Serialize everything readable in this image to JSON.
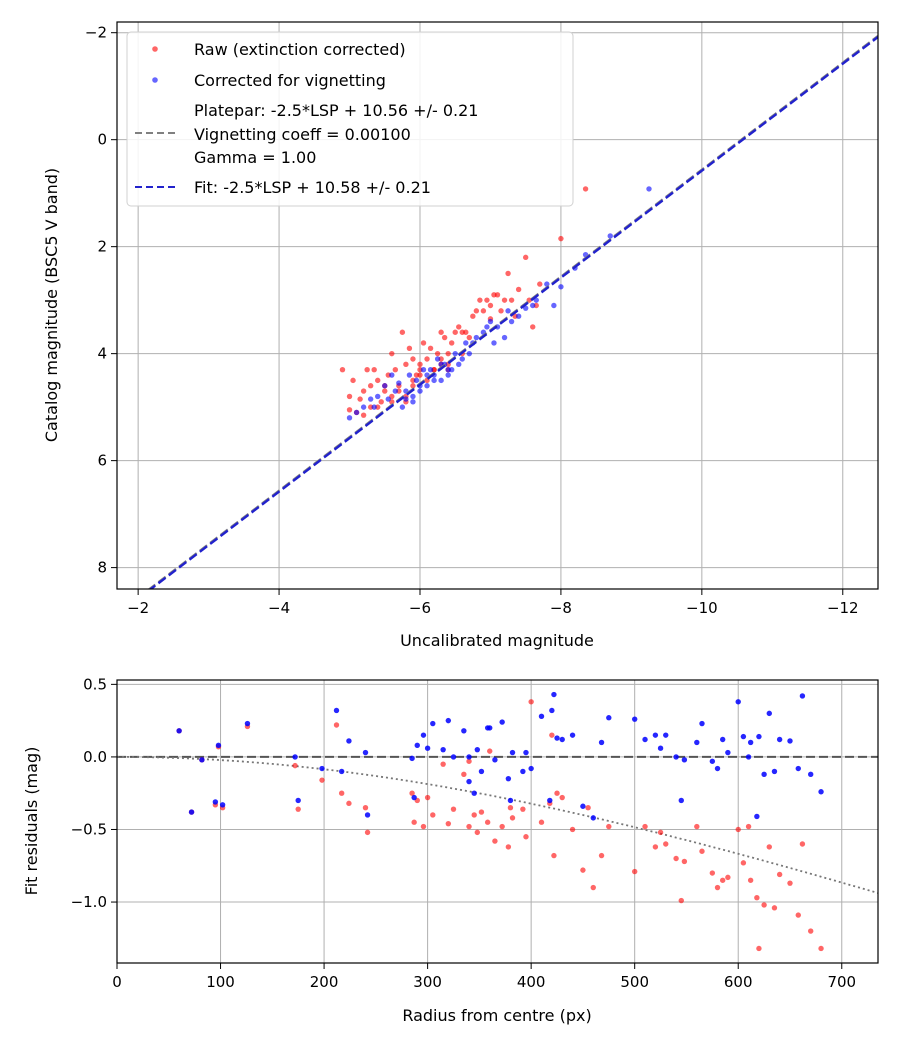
{
  "chart_data": [
    {
      "type": "scatter",
      "xlabel": "Uncalibrated magnitude",
      "ylabel": "Catalog magnitude (BSC5 V band)",
      "xlim": [
        -1.7,
        -12.5
      ],
      "ylim": [
        8.4,
        -2.2
      ],
      "xticks": [
        -2,
        -4,
        -6,
        -8,
        -10,
        -12
      ],
      "xtick_labels": [
        "−2",
        "−4",
        "−6",
        "−8",
        "−10",
        "−12"
      ],
      "yticks": [
        -2,
        0,
        2,
        4,
        6,
        8
      ],
      "ytick_labels": [
        "−2",
        "0",
        "2",
        "4",
        "6",
        "8"
      ],
      "grid": true,
      "legend_position": "top-left",
      "legend": {
        "raw": "Raw (extinction corrected)",
        "corrected": "Corrected for vignetting",
        "platepar_line1": "Platepar: -2.5*LSP + 10.56 +/- 0.21",
        "platepar_line2": "Vignetting coeff = 0.00100",
        "platepar_line3": "Gamma = 1.00",
        "fit": "Fit: -2.5*LSP + 10.58 +/- 0.21"
      },
      "colors": {
        "raw": "#ff0000",
        "corrected": "#0000ff",
        "platepar": "#808080",
        "fit": "#2222cc"
      },
      "platepar_line": {
        "slope": 1.0,
        "intercept": 10.56
      },
      "fit_line": {
        "slope": 1.0,
        "intercept": 10.58
      },
      "series": [
        {
          "name": "Raw (extinction corrected)",
          "x": [
            -4.9,
            -5.0,
            -5.0,
            -5.05,
            -5.1,
            -5.15,
            -5.2,
            -5.25,
            -5.3,
            -5.3,
            -5.35,
            -5.4,
            -5.45,
            -5.5,
            -5.55,
            -5.6,
            -5.6,
            -5.65,
            -5.7,
            -5.75,
            -5.8,
            -5.8,
            -5.85,
            -5.9,
            -5.9,
            -5.95,
            -6.0,
            -6.05,
            -6.1,
            -6.1,
            -6.15,
            -6.2,
            -6.25,
            -6.3,
            -6.3,
            -6.35,
            -6.4,
            -6.4,
            -6.45,
            -6.5,
            -6.55,
            -6.6,
            -6.65,
            -6.7,
            -6.75,
            -6.8,
            -6.85,
            -6.9,
            -6.95,
            -7.0,
            -7.0,
            -7.05,
            -7.1,
            -7.15,
            -7.2,
            -7.25,
            -7.3,
            -7.35,
            -7.4,
            -7.5,
            -7.55,
            -7.6,
            -7.65,
            -7.7,
            -8.0,
            -8.35,
            -5.5,
            -5.7,
            -5.9,
            -6.0,
            -6.2,
            -6.4,
            -6.6,
            -5.2,
            -5.4,
            -5.6,
            -5.8,
            -6.0,
            -6.3
          ],
          "y": [
            4.3,
            4.8,
            5.05,
            4.5,
            5.1,
            4.85,
            4.7,
            4.3,
            4.6,
            5.0,
            4.3,
            4.5,
            4.9,
            4.7,
            4.4,
            4.0,
            4.8,
            4.3,
            4.6,
            3.6,
            4.2,
            4.9,
            3.9,
            4.1,
            4.5,
            4.4,
            4.2,
            3.8,
            4.1,
            4.5,
            3.9,
            4.3,
            4.0,
            4.2,
            3.6,
            3.7,
            4.0,
            4.3,
            3.8,
            3.6,
            3.5,
            3.6,
            3.6,
            3.7,
            3.3,
            3.2,
            3.0,
            3.2,
            3.0,
            3.35,
            3.1,
            2.9,
            2.9,
            3.2,
            3.0,
            2.5,
            3.0,
            3.3,
            2.8,
            2.2,
            3.0,
            3.5,
            3.1,
            2.7,
            1.85,
            0.92,
            4.6,
            4.7,
            4.6,
            4.4,
            4.3,
            4.2,
            4.0,
            5.15,
            5.0,
            4.9,
            4.8,
            4.3,
            4.1
          ]
        },
        {
          "name": "Corrected for vignetting",
          "x": [
            -5.0,
            -5.1,
            -5.2,
            -5.3,
            -5.35,
            -5.4,
            -5.5,
            -5.55,
            -5.6,
            -5.65,
            -5.7,
            -5.75,
            -5.8,
            -5.85,
            -5.9,
            -5.95,
            -6.0,
            -6.05,
            -6.1,
            -6.15,
            -6.2,
            -6.25,
            -6.3,
            -6.35,
            -6.4,
            -6.45,
            -6.5,
            -6.55,
            -6.6,
            -6.65,
            -6.7,
            -6.75,
            -6.8,
            -6.9,
            -6.95,
            -7.0,
            -7.05,
            -7.1,
            -7.2,
            -7.25,
            -7.3,
            -7.4,
            -7.5,
            -7.6,
            -7.65,
            -7.8,
            -7.9,
            -8.0,
            -8.2,
            -8.35,
            -8.7,
            -9.25,
            -5.8,
            -6.0,
            -6.2,
            -6.4,
            -5.9,
            -6.1,
            -6.3
          ],
          "y": [
            5.2,
            5.1,
            5.0,
            4.85,
            5.0,
            4.8,
            4.6,
            4.85,
            4.4,
            4.7,
            4.55,
            5.0,
            4.7,
            4.4,
            4.8,
            4.5,
            4.6,
            4.3,
            4.6,
            4.3,
            4.4,
            4.1,
            4.5,
            4.2,
            4.4,
            4.3,
            4.0,
            4.2,
            4.1,
            3.8,
            4.0,
            3.8,
            3.7,
            3.6,
            3.5,
            3.4,
            3.8,
            3.5,
            3.7,
            3.2,
            3.4,
            3.3,
            3.15,
            3.1,
            3.0,
            2.7,
            3.1,
            2.75,
            2.4,
            2.15,
            1.8,
            0.92,
            4.85,
            4.7,
            4.5,
            4.3,
            4.9,
            4.4,
            4.2
          ]
        }
      ]
    },
    {
      "type": "scatter",
      "xlabel": "Radius from centre (px)",
      "ylabel": "Fit residuals (mag)",
      "xlim": [
        0,
        735
      ],
      "ylim": [
        -1.42,
        0.53
      ],
      "xticks": [
        0,
        100,
        200,
        300,
        400,
        500,
        600,
        700
      ],
      "xtick_labels": [
        "0",
        "100",
        "200",
        "300",
        "400",
        "500",
        "600",
        "700"
      ],
      "yticks": [
        0.5,
        0.0,
        -0.5,
        -1.0
      ],
      "ytick_labels": [
        "0.5",
        "0.0",
        "−0.5",
        "−1.0"
      ],
      "grid": true,
      "zero_line": 0.0,
      "vignetting_curve": {
        "type": "dotted",
        "coeff": 0.001,
        "note": "-2.5*log10(cos^4(atan(coeff*r)))"
      },
      "series": [
        {
          "name": "Raw",
          "x": [
            60,
            72,
            82,
            95,
            98,
            102,
            126,
            172,
            175,
            198,
            212,
            217,
            224,
            240,
            242,
            285,
            287,
            290,
            296,
            300,
            305,
            315,
            320,
            325,
            335,
            340,
            345,
            348,
            352,
            358,
            365,
            372,
            378,
            382,
            392,
            395,
            410,
            418,
            422,
            425,
            430,
            440,
            450,
            460,
            468,
            475,
            500,
            510,
            520,
            525,
            530,
            540,
            545,
            548,
            560,
            565,
            575,
            580,
            585,
            590,
            600,
            605,
            610,
            612,
            618,
            620,
            625,
            630,
            635,
            640,
            650,
            658,
            662,
            670,
            680,
            340,
            360,
            380,
            400,
            420,
            455
          ],
          "y": [
            0.18,
            -0.38,
            -0.02,
            -0.33,
            0.07,
            -0.35,
            0.21,
            -0.06,
            -0.36,
            -0.16,
            0.22,
            -0.25,
            -0.32,
            -0.35,
            -0.52,
            -0.25,
            -0.45,
            -0.3,
            -0.48,
            -0.28,
            -0.4,
            -0.05,
            -0.46,
            -0.36,
            -0.12,
            -0.48,
            -0.4,
            -0.52,
            -0.38,
            -0.45,
            -0.58,
            -0.48,
            -0.62,
            -0.42,
            -0.36,
            -0.55,
            -0.45,
            -0.32,
            -0.68,
            -0.25,
            -0.28,
            -0.5,
            -0.78,
            -0.9,
            -0.68,
            -0.48,
            -0.79,
            -0.48,
            -0.62,
            -0.52,
            -0.6,
            -0.7,
            -0.99,
            -0.72,
            -0.48,
            -0.65,
            -0.8,
            -0.9,
            -0.85,
            -0.83,
            -0.5,
            -0.73,
            -0.48,
            -0.85,
            -0.97,
            -1.32,
            -1.02,
            -0.62,
            -1.04,
            -0.81,
            -0.87,
            -1.09,
            -0.6,
            -1.2,
            -1.32,
            -0.03,
            0.04,
            -0.35,
            0.38,
            0.15,
            -0.35
          ]
        },
        {
          "name": "Corrected",
          "x": [
            60,
            72,
            82,
            95,
            98,
            102,
            126,
            172,
            175,
            198,
            212,
            217,
            224,
            240,
            242,
            285,
            287,
            290,
            296,
            300,
            305,
            315,
            320,
            325,
            335,
            340,
            345,
            348,
            352,
            358,
            365,
            372,
            378,
            382,
            392,
            395,
            410,
            418,
            422,
            425,
            430,
            440,
            450,
            460,
            468,
            475,
            500,
            510,
            520,
            525,
            530,
            540,
            545,
            548,
            560,
            565,
            575,
            580,
            585,
            590,
            600,
            605,
            610,
            612,
            618,
            620,
            625,
            630,
            635,
            640,
            650,
            658,
            662,
            670,
            680,
            340,
            360,
            380,
            400,
            420
          ],
          "y": [
            0.18,
            -0.38,
            -0.02,
            -0.31,
            0.08,
            -0.33,
            0.23,
            0.0,
            -0.3,
            -0.08,
            0.32,
            -0.1,
            0.11,
            0.03,
            -0.4,
            -0.01,
            -0.28,
            0.08,
            0.15,
            0.06,
            0.23,
            0.05,
            0.25,
            0.0,
            0.18,
            -0.17,
            -0.25,
            0.05,
            -0.1,
            0.2,
            -0.02,
            0.24,
            -0.15,
            0.03,
            -0.1,
            0.03,
            0.28,
            -0.3,
            0.43,
            0.13,
            0.12,
            0.15,
            -0.34,
            -0.42,
            0.1,
            0.27,
            0.26,
            0.12,
            0.15,
            0.06,
            0.15,
            0.0,
            -0.3,
            -0.02,
            0.1,
            0.23,
            -0.03,
            -0.08,
            0.12,
            0.03,
            0.38,
            0.14,
            0.0,
            0.1,
            -0.41,
            0.14,
            -0.12,
            0.3,
            -0.1,
            0.12,
            0.11,
            -0.08,
            0.42,
            -0.12,
            -0.24,
            0.0,
            0.2,
            -0.3,
            -0.08,
            0.32
          ]
        }
      ]
    }
  ]
}
